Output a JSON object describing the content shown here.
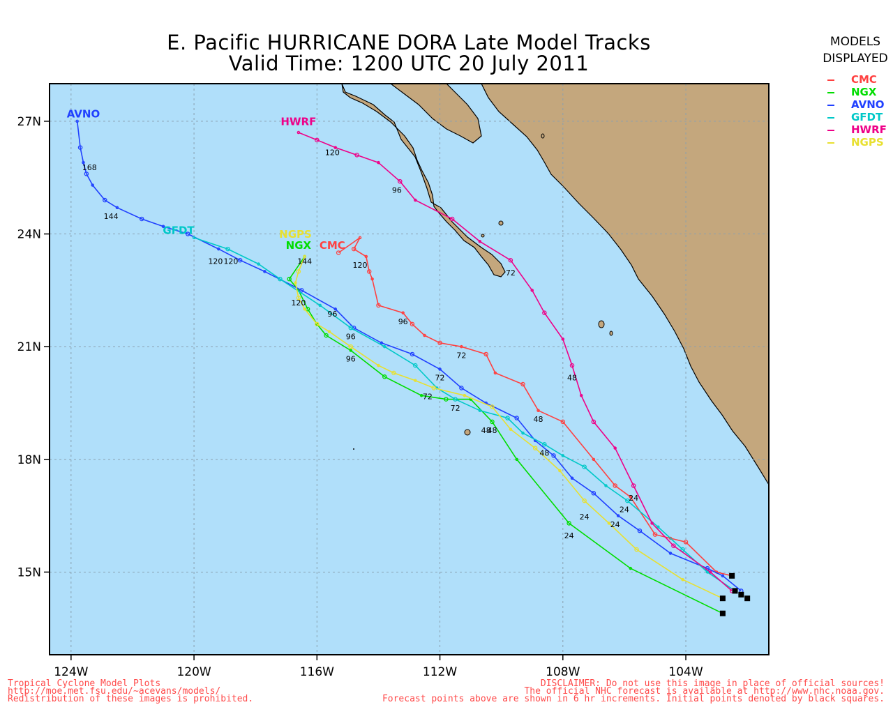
{
  "title": {
    "line1": "E. Pacific HURRICANE DORA Late Model Tracks",
    "line2": "Valid Time: 1200 UTC 20 July 2011"
  },
  "legend": {
    "header1": "MODELS",
    "header2": "DISPLAYED",
    "items": [
      {
        "name": "CMC",
        "color": "#ff4040"
      },
      {
        "name": "NGX",
        "color": "#00dd00"
      },
      {
        "name": "AVNO",
        "color": "#2040ff"
      },
      {
        "name": "GFDT",
        "color": "#00c8c8"
      },
      {
        "name": "HWRF",
        "color": "#ee0088"
      },
      {
        "name": "NGPS",
        "color": "#e8e030"
      }
    ]
  },
  "map": {
    "lon_range": [
      -124.7,
      -101.3
    ],
    "lat_range": [
      12.8,
      28.0
    ],
    "ocean_color": "#b0dffa",
    "land_color": "#c4a77d",
    "x_ticks": [
      {
        "lon": -124,
        "label": "124W"
      },
      {
        "lon": -120,
        "label": "120W"
      },
      {
        "lon": -116,
        "label": "116W"
      },
      {
        "lon": -112,
        "label": "112W"
      },
      {
        "lon": -108,
        "label": "108W"
      },
      {
        "lon": -104,
        "label": "104W"
      }
    ],
    "y_ticks": [
      {
        "lat": 27,
        "label": "27N"
      },
      {
        "lat": 24,
        "label": "24N"
      },
      {
        "lat": 21,
        "label": "21N"
      },
      {
        "lat": 18,
        "label": "18N"
      },
      {
        "lat": 15,
        "label": "15N"
      }
    ],
    "grid": true
  },
  "tracks": [
    {
      "model": "CMC",
      "color": "#ff4040",
      "points": [
        [
          -102.5,
          14.9
        ],
        [
          -103.0,
          15.0
        ],
        [
          -104.0,
          15.8
        ],
        [
          -104.5,
          15.9
        ],
        [
          -105.0,
          16.0
        ],
        [
          -105.8,
          17.0
        ],
        [
          -106.3,
          17.3
        ],
        [
          -107.0,
          18.0
        ],
        [
          -108.0,
          19.0
        ],
        [
          -108.8,
          19.3
        ],
        [
          -109.3,
          20.0
        ],
        [
          -110.2,
          20.3
        ],
        [
          -110.5,
          20.8
        ],
        [
          -111.3,
          21.0
        ],
        [
          -112.0,
          21.1
        ],
        [
          -112.5,
          21.3
        ],
        [
          -112.9,
          21.6
        ],
        [
          -113.2,
          21.9
        ],
        [
          -114.0,
          22.1
        ],
        [
          -114.2,
          22.8
        ],
        [
          -114.3,
          23.0
        ],
        [
          -114.4,
          23.4
        ],
        [
          -114.8,
          23.6
        ],
        [
          -114.6,
          23.9
        ],
        [
          -115.3,
          23.5
        ]
      ],
      "labels": [
        {
          "text": "48",
          "lon": -108.8,
          "lat": 19.0
        },
        {
          "text": "72",
          "lon": -111.3,
          "lat": 20.7
        },
        {
          "text": "96",
          "lon": -113.2,
          "lat": 21.6
        },
        {
          "text": "120",
          "lon": -114.6,
          "lat": 23.1
        }
      ],
      "name_label": {
        "lon": -115.5,
        "lat": 23.6
      }
    },
    {
      "model": "NGX",
      "color": "#00dd00",
      "points": [
        [
          -102.8,
          13.9
        ],
        [
          -105.8,
          15.1
        ],
        [
          -107.8,
          16.3
        ],
        [
          -109.5,
          18.0
        ],
        [
          -110.3,
          19.0
        ],
        [
          -111.0,
          19.6
        ],
        [
          -111.8,
          19.6
        ],
        [
          -112.6,
          19.7
        ],
        [
          -113.8,
          20.2
        ],
        [
          -114.9,
          20.9
        ],
        [
          -115.7,
          21.3
        ],
        [
          -116.0,
          21.6
        ],
        [
          -116.3,
          22.0
        ],
        [
          -116.6,
          22.5
        ],
        [
          -116.9,
          22.8
        ],
        [
          -116.4,
          23.4
        ]
      ],
      "labels": [
        {
          "text": "24",
          "lon": -107.8,
          "lat": 15.9
        },
        {
          "text": "48",
          "lon": -110.3,
          "lat": 18.7
        },
        {
          "text": "72",
          "lon": -111.5,
          "lat": 19.3
        },
        {
          "text": "96",
          "lon": -114.9,
          "lat": 20.6
        },
        {
          "text": "120",
          "lon": -116.6,
          "lat": 22.1
        }
      ],
      "name_label": {
        "lon": -116.6,
        "lat": 23.6
      }
    },
    {
      "model": "AVNO",
      "color": "#2040ff",
      "points": [
        [
          -102.2,
          14.5
        ],
        [
          -102.8,
          14.9
        ],
        [
          -103.3,
          15.1
        ],
        [
          -104.5,
          15.5
        ],
        [
          -105.5,
          16.1
        ],
        [
          -106.2,
          16.5
        ],
        [
          -107.0,
          17.1
        ],
        [
          -107.7,
          17.5
        ],
        [
          -108.3,
          18.1
        ],
        [
          -108.9,
          18.5
        ],
        [
          -109.5,
          19.1
        ],
        [
          -110.5,
          19.5
        ],
        [
          -111.3,
          19.9
        ],
        [
          -112.0,
          20.4
        ],
        [
          -112.9,
          20.8
        ],
        [
          -113.9,
          21.1
        ],
        [
          -114.8,
          21.5
        ],
        [
          -115.4,
          22.0
        ],
        [
          -116.5,
          22.5
        ],
        [
          -117.7,
          23.0
        ],
        [
          -118.5,
          23.3
        ],
        [
          -119.2,
          23.6
        ],
        [
          -120.2,
          24.0
        ],
        [
          -121.0,
          24.2
        ],
        [
          -121.7,
          24.4
        ],
        [
          -122.5,
          24.7
        ],
        [
          -122.9,
          24.9
        ],
        [
          -123.3,
          25.3
        ],
        [
          -123.5,
          25.6
        ],
        [
          -123.6,
          25.9
        ],
        [
          -123.7,
          26.3
        ],
        [
          -123.8,
          27.0
        ]
      ],
      "labels": [
        {
          "text": "24",
          "lon": -106.3,
          "lat": 16.2
        },
        {
          "text": "48",
          "lon": -108.6,
          "lat": 18.1
        },
        {
          "text": "72",
          "lon": -112.0,
          "lat": 20.1
        },
        {
          "text": "96",
          "lon": -114.9,
          "lat": 21.2
        },
        {
          "text": "120",
          "lon": -119.3,
          "lat": 23.2
        },
        {
          "text": "144",
          "lon": -122.7,
          "lat": 24.4
        },
        {
          "text": "168",
          "lon": -123.4,
          "lat": 25.7
        }
      ],
      "name_label": {
        "lon": -123.6,
        "lat": 27.1
      }
    },
    {
      "model": "GFDT",
      "color": "#00c8c8",
      "points": [
        [
          -102.4,
          14.5
        ],
        [
          -103.3,
          15.0
        ],
        [
          -104.1,
          15.6
        ],
        [
          -104.9,
          16.2
        ],
        [
          -105.9,
          16.9
        ],
        [
          -106.6,
          17.3
        ],
        [
          -107.3,
          17.8
        ],
        [
          -108.0,
          18.1
        ],
        [
          -108.6,
          18.4
        ],
        [
          -109.3,
          18.7
        ],
        [
          -109.8,
          19.1
        ],
        [
          -110.7,
          19.3
        ],
        [
          -111.5,
          19.6
        ],
        [
          -112.1,
          19.9
        ],
        [
          -112.8,
          20.5
        ],
        [
          -113.8,
          21.0
        ],
        [
          -114.9,
          21.5
        ],
        [
          -115.9,
          22.1
        ],
        [
          -117.2,
          22.8
        ],
        [
          -117.9,
          23.2
        ],
        [
          -118.9,
          23.6
        ],
        [
          -120.0,
          23.9
        ]
      ],
      "labels": [
        {
          "text": "24",
          "lon": -106.0,
          "lat": 16.6
        },
        {
          "text": "48",
          "lon": -110.5,
          "lat": 18.7
        },
        {
          "text": "72",
          "lon": -112.4,
          "lat": 19.6
        },
        {
          "text": "96",
          "lon": -115.5,
          "lat": 21.8
        },
        {
          "text": "120",
          "lon": -118.8,
          "lat": 23.2
        }
      ],
      "name_label": {
        "lon": -120.5,
        "lat": 24.0
      }
    },
    {
      "model": "HWRF",
      "color": "#ee0088",
      "points": [
        [
          -102.5,
          14.5
        ],
        [
          -103.2,
          15.0
        ],
        [
          -104.4,
          15.7
        ],
        [
          -105.1,
          16.3
        ],
        [
          -105.7,
          17.3
        ],
        [
          -106.3,
          18.3
        ],
        [
          -107.0,
          19.0
        ],
        [
          -107.4,
          19.7
        ],
        [
          -107.7,
          20.5
        ],
        [
          -108.0,
          21.2
        ],
        [
          -108.6,
          21.9
        ],
        [
          -109.0,
          22.5
        ],
        [
          -109.7,
          23.3
        ],
        [
          -110.7,
          23.8
        ],
        [
          -111.6,
          24.4
        ],
        [
          -112.8,
          24.9
        ],
        [
          -113.3,
          25.4
        ],
        [
          -114.0,
          25.9
        ],
        [
          -114.7,
          26.1
        ],
        [
          -115.4,
          26.3
        ],
        [
          -116.0,
          26.5
        ],
        [
          -116.6,
          26.7
        ]
      ],
      "labels": [
        {
          "text": "24",
          "lon": -105.7,
          "lat": 16.9
        },
        {
          "text": "48",
          "lon": -107.7,
          "lat": 20.1
        },
        {
          "text": "72",
          "lon": -109.7,
          "lat": 22.9
        },
        {
          "text": "96",
          "lon": -113.4,
          "lat": 25.1
        },
        {
          "text": "120",
          "lon": -115.5,
          "lat": 26.1
        }
      ],
      "name_label": {
        "lon": -116.6,
        "lat": 26.9
      }
    },
    {
      "model": "NGPS",
      "color": "#e8e030",
      "points": [
        [
          -102.8,
          14.3
        ],
        [
          -104.1,
          14.8
        ],
        [
          -105.6,
          15.6
        ],
        [
          -106.5,
          16.3
        ],
        [
          -107.3,
          16.9
        ],
        [
          -108.1,
          17.7
        ],
        [
          -108.9,
          18.3
        ],
        [
          -109.7,
          18.8
        ],
        [
          -110.3,
          19.4
        ],
        [
          -111.2,
          19.7
        ],
        [
          -112.2,
          19.9
        ],
        [
          -112.8,
          20.1
        ],
        [
          -113.5,
          20.3
        ],
        [
          -114.0,
          20.5
        ],
        [
          -114.9,
          21.0
        ],
        [
          -115.6,
          21.4
        ],
        [
          -116.0,
          21.6
        ],
        [
          -116.4,
          22.0
        ],
        [
          -116.6,
          22.3
        ],
        [
          -116.7,
          22.7
        ],
        [
          -116.6,
          23.0
        ],
        [
          -116.4,
          23.4
        ]
      ],
      "labels": [
        {
          "text": "24",
          "lon": -107.3,
          "lat": 16.4
        },
        {
          "text": "144",
          "lon": -116.4,
          "lat": 23.2
        }
      ],
      "name_label": {
        "lon": -116.7,
        "lat": 23.9
      }
    }
  ],
  "initial_points": [
    [
      -102.5,
      14.9
    ],
    [
      -102.8,
      13.9
    ],
    [
      -102.4,
      14.5
    ],
    [
      -102.2,
      14.4
    ],
    [
      -102.0,
      14.3
    ],
    [
      -102.8,
      14.3
    ]
  ],
  "footer": {
    "left": [
      "Tropical Cyclone Model Plots",
      "http://moe.met.fsu.edu/~acevans/models/",
      "Redistribution of these images is prohibited."
    ],
    "right": [
      "DISCLAIMER: Do not use this image in place of official sources!",
      "The official NHC forecast is available at http://www.nhc.noaa.gov.",
      "Forecast points above are shown in 6 hr increments. Initial points denoted by black squares."
    ]
  }
}
